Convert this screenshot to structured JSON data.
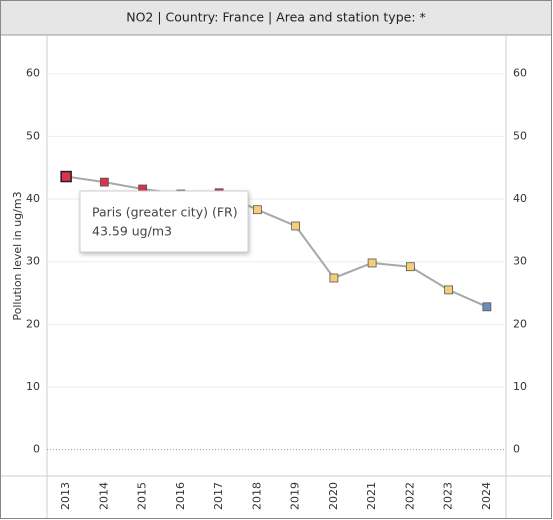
{
  "chart_data": {
    "type": "line",
    "title": "NO2 | Country: France | Area and station type: *",
    "y_label": "Pollution level in ug/m3",
    "categories": [
      "2013",
      "2014",
      "2015",
      "2016",
      "2017",
      "2018",
      "2019",
      "2020",
      "2021",
      "2022",
      "2023",
      "2024"
    ],
    "series": [
      {
        "name": "Paris (greater city) (FR)",
        "color": "#a8a8a8",
        "values": [
          43.59,
          42.7,
          41.6,
          40.8,
          41.0,
          38.3,
          35.7,
          27.4,
          29.8,
          29.2,
          25.5,
          22.8
        ],
        "point_colors": [
          "#d9344d",
          "#d9344d",
          "#d9344d",
          "#d9344d",
          "#d9344d",
          "#f3cf78",
          "#f3cf78",
          "#f3cf78",
          "#f3cf78",
          "#f3cf78",
          "#f3cf78",
          "#6b8fbd"
        ]
      }
    ],
    "ylim": [
      -4.2,
      65.7
    ],
    "yticks": [
      0,
      10,
      20,
      30,
      40,
      50,
      60
    ],
    "grid": true,
    "right_axis": true,
    "tooltip": {
      "title": "Paris (greater city) (FR)",
      "text": "43.59 ug/m3"
    }
  }
}
